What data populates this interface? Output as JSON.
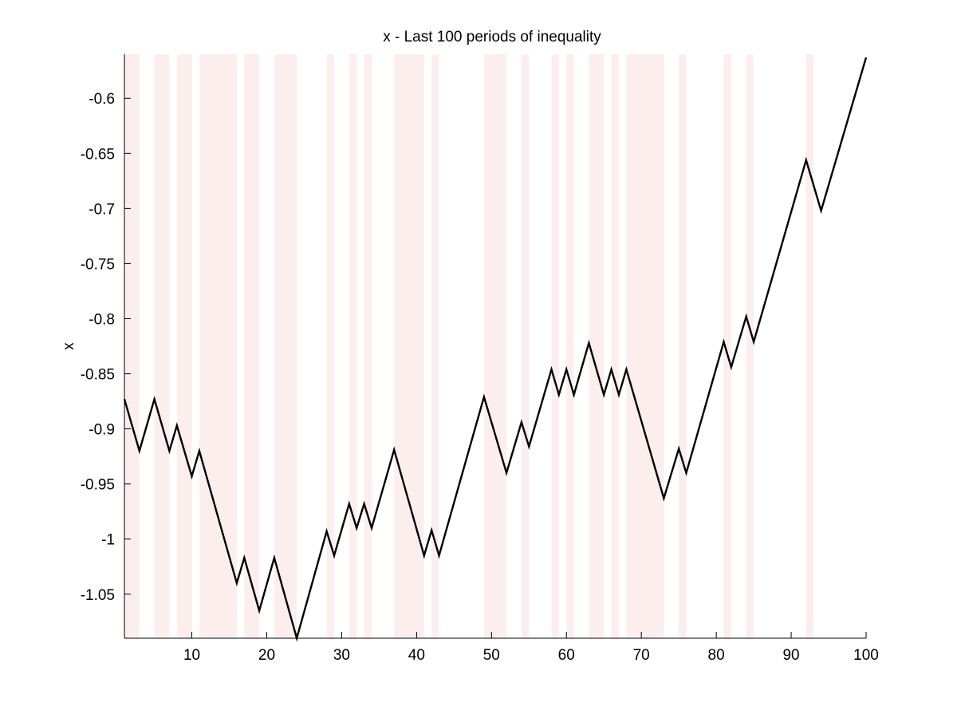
{
  "chart_data": {
    "type": "line",
    "title": "x - Last 100 periods of inequality",
    "xlabel": "",
    "ylabel": "x",
    "xlim": [
      1,
      100
    ],
    "ylim": [
      -1.09,
      -0.56
    ],
    "x_ticks": [
      10,
      20,
      30,
      40,
      50,
      60,
      70,
      80,
      90,
      100
    ],
    "x_tick_labels": [
      "10",
      "20",
      "30",
      "40",
      "50",
      "60",
      "70",
      "80",
      "90",
      "100"
    ],
    "y_ticks": [
      -0.6,
      -0.65,
      -0.7,
      -0.75,
      -0.8,
      -0.85,
      -0.9,
      -0.95,
      -1,
      -1.05
    ],
    "y_tick_labels": [
      "-0.6",
      "-0.65",
      "-0.7",
      "-0.75",
      "-0.8",
      "-0.85",
      "-0.9",
      "-0.95",
      "-1",
      "-1.05"
    ],
    "grid": false,
    "line_color": "#000000",
    "shade_color": "#fdeeee",
    "shaded_periods": [
      [
        1,
        3
      ],
      [
        5,
        7
      ],
      [
        8,
        10
      ],
      [
        11,
        16
      ],
      [
        17,
        19
      ],
      [
        21,
        24
      ],
      [
        28,
        29
      ],
      [
        31,
        32
      ],
      [
        33,
        34
      ],
      [
        37,
        41
      ],
      [
        42,
        43
      ],
      [
        49,
        52
      ],
      [
        54,
        55
      ],
      [
        58,
        59
      ],
      [
        60,
        61
      ],
      [
        63,
        65
      ],
      [
        66,
        67
      ],
      [
        68,
        73
      ],
      [
        75,
        76
      ],
      [
        81,
        82
      ],
      [
        84,
        85
      ],
      [
        92,
        93
      ]
    ],
    "series": [
      {
        "x": [
          1,
          3,
          5,
          7,
          8,
          10,
          11,
          16,
          17,
          19,
          21,
          24,
          28,
          29,
          31,
          32,
          33,
          34,
          37,
          41,
          42,
          43,
          49,
          52,
          54,
          55,
          58,
          59,
          60,
          61,
          63,
          65,
          66,
          67,
          68,
          73,
          75,
          76,
          81,
          82,
          84,
          85,
          92,
          94,
          100
        ],
        "values": [
          -0.873,
          -0.92,
          -0.873,
          -0.92,
          -0.897,
          -0.943,
          -0.92,
          -1.04,
          -1.017,
          -1.065,
          -1.017,
          -1.09,
          -0.993,
          -1.015,
          -0.968,
          -0.99,
          -0.968,
          -0.99,
          -0.919,
          -1.015,
          -0.992,
          -1.015,
          -0.871,
          -0.94,
          -0.894,
          -0.916,
          -0.846,
          -0.869,
          -0.846,
          -0.869,
          -0.822,
          -0.869,
          -0.846,
          -0.869,
          -0.846,
          -0.963,
          -0.918,
          -0.94,
          -0.821,
          -0.844,
          -0.798,
          -0.821,
          -0.656,
          -0.702,
          -0.563
        ]
      }
    ]
  }
}
